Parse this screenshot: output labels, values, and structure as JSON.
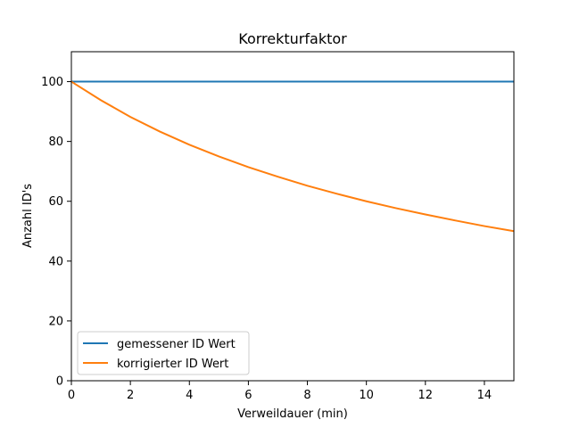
{
  "chart_data": {
    "type": "line",
    "title": "Korrekturfaktor",
    "xlabel": "Verweildauer (min)",
    "ylabel": "Anzahl ID's",
    "xlim": [
      0,
      15
    ],
    "ylim": [
      0,
      110
    ],
    "xticks": [
      0,
      2,
      4,
      6,
      8,
      10,
      12,
      14
    ],
    "yticks": [
      0,
      20,
      40,
      60,
      80,
      100
    ],
    "grid": false,
    "legend_position": "lower-left",
    "series": [
      {
        "name": "gemessener ID Wert",
        "color": "#1f77b4",
        "x": [
          0,
          1,
          2,
          3,
          4,
          5,
          6,
          7,
          8,
          9,
          10,
          11,
          12,
          13,
          14,
          15
        ],
        "y": [
          100,
          100,
          100,
          100,
          100,
          100,
          100,
          100,
          100,
          100,
          100,
          100,
          100,
          100,
          100,
          100
        ]
      },
      {
        "name": "korrigierter ID Wert",
        "color": "#ff7f0e",
        "x": [
          0,
          1,
          2,
          3,
          4,
          5,
          6,
          7,
          8,
          9,
          10,
          11,
          12,
          13,
          14,
          15
        ],
        "y": [
          100,
          93.8,
          88.2,
          83.3,
          78.9,
          75.0,
          71.4,
          68.2,
          65.2,
          62.5,
          60.0,
          57.7,
          55.6,
          53.6,
          51.7,
          50.0
        ]
      }
    ]
  }
}
